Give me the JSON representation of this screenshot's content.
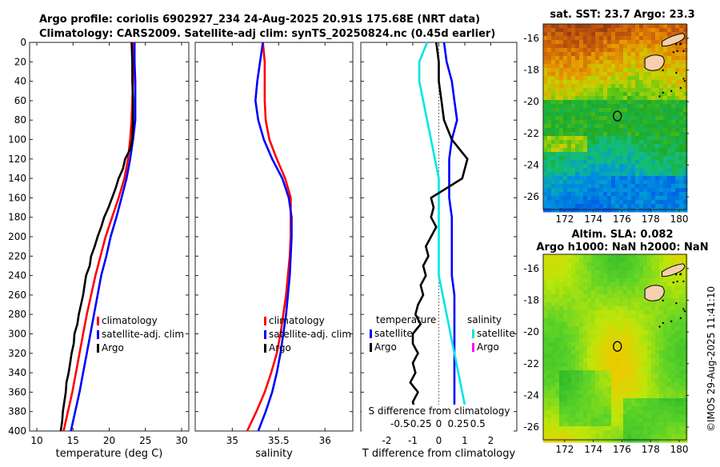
{
  "header": {
    "line1": "Argo profile: coriolis 6902927_234 24-Aug-2025 20.91S 175.68E (NRT data)",
    "line2": "Climatology: CARS2009. Satellite-adj clim: synTS_20250824.nc (0.45d earlier)"
  },
  "timestamp": "©IMOS 29-Aug-2025 11:41:10",
  "colors": {
    "climatology": "#ff0000",
    "satellite": "#0000ff",
    "argo": "#000000",
    "salinity_satellite": "#00e5e5",
    "salinity_argo": "#ff00ff"
  },
  "chart_data": [
    {
      "type": "line",
      "id": "temperature",
      "xlabel": "temperature (deg C)",
      "ylabel": "",
      "xlim": [
        9,
        31
      ],
      "ylim": [
        0,
        400
      ],
      "y_reversed": true,
      "xticks": [
        10,
        15,
        20,
        25,
        30
      ],
      "yticks": [
        0,
        20,
        40,
        60,
        80,
        100,
        120,
        140,
        160,
        180,
        200,
        220,
        240,
        260,
        280,
        300,
        320,
        340,
        360,
        380,
        400
      ],
      "legend": [
        "climatology",
        "satellite-adj. clim",
        "Argo"
      ],
      "legend_position": "lower-right",
      "series": [
        {
          "name": "climatology",
          "color": "#ff0000",
          "points": [
            [
              23.3,
              0
            ],
            [
              23.3,
              20
            ],
            [
              23.3,
              40
            ],
            [
              23.2,
              60
            ],
            [
              23.1,
              80
            ],
            [
              22.9,
              100
            ],
            [
              22.6,
              120
            ],
            [
              22.1,
              140
            ],
            [
              21.3,
              160
            ],
            [
              20.4,
              180
            ],
            [
              19.5,
              200
            ],
            [
              18.8,
              220
            ],
            [
              18.1,
              240
            ],
            [
              17.5,
              260
            ],
            [
              16.9,
              280
            ],
            [
              16.4,
              300
            ],
            [
              15.9,
              320
            ],
            [
              15.4,
              340
            ],
            [
              14.9,
              360
            ],
            [
              14.3,
              380
            ],
            [
              13.7,
              400
            ]
          ]
        },
        {
          "name": "satellite-adj. clim",
          "color": "#0000ff",
          "points": [
            [
              23.5,
              0
            ],
            [
              23.5,
              20
            ],
            [
              23.6,
              40
            ],
            [
              23.6,
              60
            ],
            [
              23.6,
              80
            ],
            [
              23.3,
              100
            ],
            [
              22.9,
              120
            ],
            [
              22.4,
              140
            ],
            [
              21.7,
              160
            ],
            [
              21.0,
              180
            ],
            [
              20.2,
              200
            ],
            [
              19.6,
              220
            ],
            [
              18.9,
              240
            ],
            [
              18.4,
              260
            ],
            [
              17.9,
              280
            ],
            [
              17.4,
              300
            ],
            [
              16.9,
              320
            ],
            [
              16.4,
              340
            ],
            [
              15.9,
              360
            ],
            [
              15.3,
              380
            ],
            [
              14.7,
              400
            ]
          ]
        },
        {
          "name": "Argo",
          "color": "#000000",
          "points": [
            [
              23.1,
              0
            ],
            [
              23.2,
              20
            ],
            [
              23.2,
              40
            ],
            [
              23.3,
              60
            ],
            [
              23.3,
              80
            ],
            [
              23.2,
              100
            ],
            [
              22.9,
              110
            ],
            [
              22.2,
              120
            ],
            [
              21.9,
              130
            ],
            [
              21.3,
              140
            ],
            [
              20.9,
              150
            ],
            [
              20.4,
              160
            ],
            [
              19.9,
              170
            ],
            [
              19.3,
              180
            ],
            [
              18.9,
              190
            ],
            [
              18.4,
              200
            ],
            [
              18.0,
              210
            ],
            [
              17.5,
              220
            ],
            [
              17.3,
              230
            ],
            [
              16.8,
              240
            ],
            [
              16.6,
              250
            ],
            [
              16.4,
              260
            ],
            [
              16.1,
              270
            ],
            [
              15.8,
              280
            ],
            [
              15.6,
              290
            ],
            [
              15.2,
              300
            ],
            [
              15.1,
              310
            ],
            [
              14.8,
              320
            ],
            [
              14.6,
              330
            ],
            [
              14.4,
              340
            ],
            [
              14.1,
              350
            ],
            [
              14.0,
              360
            ],
            [
              13.8,
              370
            ],
            [
              13.6,
              380
            ],
            [
              13.5,
              390
            ],
            [
              13.3,
              400
            ]
          ]
        }
      ]
    },
    {
      "type": "line",
      "id": "salinity",
      "xlabel": "salinity",
      "xlim": [
        34.6,
        36.3
      ],
      "ylim": [
        0,
        400
      ],
      "y_reversed": true,
      "xticks": [
        35,
        35.5,
        36
      ],
      "legend": [
        "climatology",
        "satellite-adj. clim",
        "Argo"
      ],
      "legend_position": "lower-right",
      "series": [
        {
          "name": "climatology",
          "color": "#ff0000",
          "points": [
            [
              35.33,
              0
            ],
            [
              35.35,
              20
            ],
            [
              35.35,
              40
            ],
            [
              35.35,
              60
            ],
            [
              35.36,
              80
            ],
            [
              35.4,
              100
            ],
            [
              35.48,
              120
            ],
            [
              35.57,
              140
            ],
            [
              35.63,
              160
            ],
            [
              35.63,
              180
            ],
            [
              35.63,
              200
            ],
            [
              35.62,
              220
            ],
            [
              35.6,
              240
            ],
            [
              35.58,
              260
            ],
            [
              35.55,
              280
            ],
            [
              35.52,
              300
            ],
            [
              35.48,
              320
            ],
            [
              35.42,
              340
            ],
            [
              35.35,
              360
            ],
            [
              35.26,
              380
            ],
            [
              35.16,
              400
            ]
          ]
        },
        {
          "name": "satellite-adj. clim",
          "color": "#0000ff",
          "points": [
            [
              35.33,
              0
            ],
            [
              35.3,
              20
            ],
            [
              35.27,
              40
            ],
            [
              35.25,
              60
            ],
            [
              35.28,
              80
            ],
            [
              35.34,
              100
            ],
            [
              35.43,
              120
            ],
            [
              35.54,
              140
            ],
            [
              35.61,
              160
            ],
            [
              35.64,
              180
            ],
            [
              35.64,
              200
            ],
            [
              35.63,
              220
            ],
            [
              35.62,
              240
            ],
            [
              35.6,
              260
            ],
            [
              35.58,
              280
            ],
            [
              35.55,
              300
            ],
            [
              35.52,
              320
            ],
            [
              35.48,
              340
            ],
            [
              35.43,
              360
            ],
            [
              35.36,
              380
            ],
            [
              35.28,
              400
            ]
          ]
        },
        {
          "name": "Argo",
          "color": "#000000",
          "points": []
        }
      ]
    },
    {
      "type": "line",
      "id": "difference",
      "xlabel": "T difference from climatology",
      "xlabel_top": "S difference from climatology",
      "xlim": [
        -3,
        3
      ],
      "ylim": [
        0,
        400
      ],
      "y_reversed": true,
      "xticks": [
        -2,
        -1,
        0,
        1,
        2
      ],
      "sticks": [
        "-0.5",
        "-0.25",
        "0",
        "0.25",
        "0.5"
      ],
      "legend_temperature_title": "temperature",
      "legend_salinity_title": "salinity",
      "legend_temperature": [
        "satellite",
        "Argo"
      ],
      "legend_salinity": [
        "satellite",
        "Argo"
      ],
      "series": [
        {
          "name": "T satellite",
          "color": "#0000ff",
          "points": [
            [
              0.2,
              0
            ],
            [
              0.3,
              20
            ],
            [
              0.5,
              40
            ],
            [
              0.6,
              60
            ],
            [
              0.7,
              80
            ],
            [
              0.5,
              100
            ],
            [
              0.4,
              120
            ],
            [
              0.4,
              140
            ],
            [
              0.4,
              160
            ],
            [
              0.5,
              180
            ],
            [
              0.5,
              200
            ],
            [
              0.5,
              220
            ],
            [
              0.5,
              240
            ],
            [
              0.6,
              260
            ],
            [
              0.6,
              280
            ],
            [
              0.6,
              300
            ],
            [
              0.6,
              320
            ],
            [
              0.6,
              340
            ],
            [
              0.6,
              360
            ],
            [
              0.6,
              380
            ],
            [
              0.6,
              400
            ]
          ]
        },
        {
          "name": "S satellite",
          "color": "#00e5e5",
          "points": [
            [
              -0.15,
              0
            ],
            [
              -0.25,
              20
            ],
            [
              -0.25,
              40
            ],
            [
              -0.2,
              60
            ],
            [
              -0.15,
              80
            ],
            [
              -0.1,
              100
            ],
            [
              -0.05,
              120
            ],
            [
              0.0,
              140
            ],
            [
              0.0,
              160
            ],
            [
              0.0,
              180
            ],
            [
              0.0,
              200
            ],
            [
              0.0,
              220
            ],
            [
              0.0,
              240
            ],
            [
              0.05,
              260
            ],
            [
              0.1,
              280
            ],
            [
              0.15,
              300
            ],
            [
              0.2,
              320
            ],
            [
              0.25,
              340
            ],
            [
              0.3,
              360
            ],
            [
              0.35,
              380
            ],
            [
              0.4,
              400
            ]
          ]
        },
        {
          "name": "T Argo",
          "color": "#000000",
          "points": [
            [
              -0.1,
              0
            ],
            [
              0.0,
              20
            ],
            [
              0.0,
              40
            ],
            [
              0.1,
              60
            ],
            [
              0.2,
              80
            ],
            [
              0.5,
              100
            ],
            [
              0.8,
              110
            ],
            [
              1.1,
              120
            ],
            [
              1.0,
              130
            ],
            [
              0.9,
              140
            ],
            [
              0.3,
              150
            ],
            [
              -0.3,
              160
            ],
            [
              -0.2,
              170
            ],
            [
              -0.3,
              180
            ],
            [
              -0.1,
              190
            ],
            [
              -0.3,
              200
            ],
            [
              -0.5,
              210
            ],
            [
              -0.4,
              220
            ],
            [
              -0.6,
              230
            ],
            [
              -0.5,
              240
            ],
            [
              -0.7,
              250
            ],
            [
              -0.6,
              260
            ],
            [
              -0.8,
              270
            ],
            [
              -0.9,
              280
            ],
            [
              -0.7,
              290
            ],
            [
              -1.0,
              300
            ],
            [
              -1.0,
              310
            ],
            [
              -0.8,
              320
            ],
            [
              -1.0,
              330
            ],
            [
              -0.9,
              340
            ],
            [
              -1.1,
              350
            ],
            [
              -0.8,
              360
            ],
            [
              -1.0,
              370
            ],
            [
              -0.9,
              380
            ],
            [
              -1.0,
              390
            ],
            [
              -0.9,
              400
            ]
          ]
        }
      ]
    },
    {
      "type": "heatmap",
      "id": "sst_map",
      "title": "sat. SST: 23.7 Argo: 23.3",
      "xticks": [
        172,
        174,
        176,
        178,
        180
      ],
      "yticks": [
        -16,
        -18,
        -20,
        -22,
        -24,
        -26
      ],
      "xlim": [
        170.5,
        180.5
      ],
      "ylim": [
        -26.8,
        -15.1
      ],
      "marker": {
        "lon": 175.68,
        "lat": -20.91
      }
    },
    {
      "type": "heatmap",
      "id": "sla_map",
      "title_line1": "Altim. SLA: 0.082",
      "title_line2": "Argo h1000: NaN h2000: NaN",
      "xticks": [
        172,
        174,
        176,
        178,
        180
      ],
      "yticks": [
        -16,
        -18,
        -20,
        -22,
        -24,
        -26
      ],
      "xlim": [
        170.5,
        180.5
      ],
      "ylim": [
        -26.8,
        -15.1
      ],
      "marker": {
        "lon": 175.68,
        "lat": -20.91
      }
    }
  ]
}
